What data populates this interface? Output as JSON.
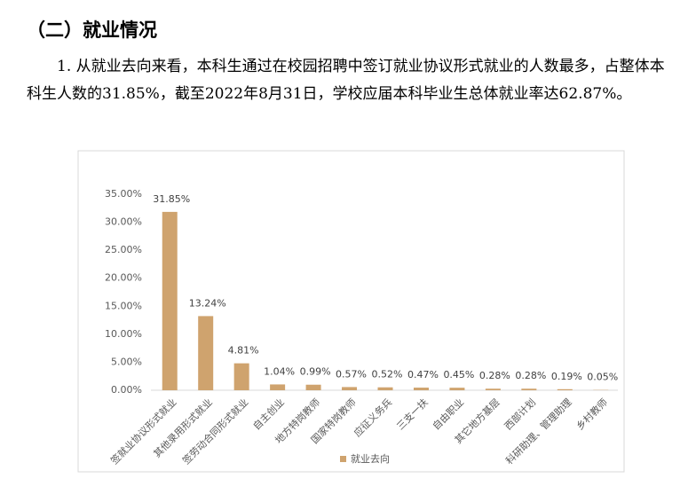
{
  "heading": "（二）就业情况",
  "paragraph": "1. 从就业去向来看，本科生通过在校园招聘中签订就业协议形式就业的人数最多，占整体本科生人数的31.85%，截至2022年8月31日，学校应届本科毕业生总体就业率达62.87%。",
  "chart_data": {
    "type": "bar",
    "categories": [
      "签就业协议形式就业",
      "其他录用形式就业",
      "签劳动合同形式就业",
      "自主创业",
      "地方特岗教师",
      "国家特岗教师",
      "应征义务兵",
      "三支一扶",
      "自由职业",
      "其它地方基层",
      "西部计划",
      "科研助理、管理助理",
      "乡村教师"
    ],
    "series": [
      {
        "name": "就业去向",
        "color": "#cfa36e",
        "values": [
          31.85,
          13.24,
          4.81,
          1.04,
          0.99,
          0.57,
          0.52,
          0.47,
          0.45,
          0.28,
          0.28,
          0.19,
          0.05
        ],
        "value_labels": [
          "31.85%",
          "13.24%",
          "4.81%",
          "1.04%",
          "0.99%",
          "0.57%",
          "0.52%",
          "0.47%",
          "0.45%",
          "0.28%",
          "0.28%",
          "0.19%",
          "0.05%"
        ]
      }
    ],
    "ylim": [
      0,
      35
    ],
    "yticks": [
      {
        "value": 0,
        "label": "0.00%"
      },
      {
        "value": 5,
        "label": "5.00%"
      },
      {
        "value": 10,
        "label": "10.00%"
      },
      {
        "value": 15,
        "label": "15.00%"
      },
      {
        "value": 20,
        "label": "20.00%"
      },
      {
        "value": 25,
        "label": "25.00%"
      },
      {
        "value": 30,
        "label": "30.00%"
      },
      {
        "value": 35,
        "label": "35.00%"
      }
    ],
    "grid": false,
    "legend": "bottom"
  }
}
